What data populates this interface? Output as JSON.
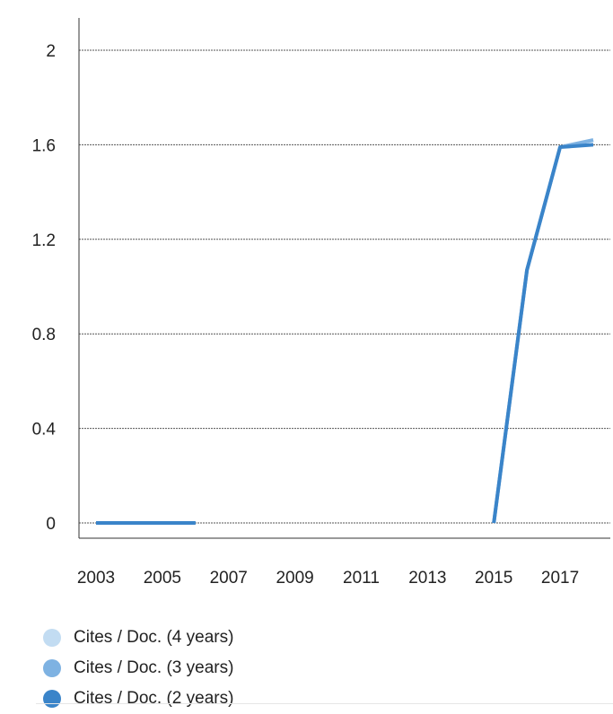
{
  "chart_data": {
    "type": "line",
    "x": [
      2003,
      2004,
      2005,
      2006,
      2007,
      2008,
      2009,
      2010,
      2011,
      2012,
      2013,
      2014,
      2015,
      2016,
      2017,
      2018
    ],
    "x_ticks": [
      "2003",
      "2005",
      "2007",
      "2009",
      "2011",
      "2013",
      "2015",
      "2017"
    ],
    "y_ticks": [
      "0",
      "0.4",
      "0.8",
      "1.2",
      "1.6",
      "2"
    ],
    "ylim": [
      0,
      2
    ],
    "grid": true,
    "legend_position": "bottom",
    "series": [
      {
        "name": "Cites / Doc. (4 years)",
        "color": "#c2dcf2",
        "values": [
          0,
          0,
          0,
          0,
          null,
          null,
          null,
          null,
          null,
          null,
          null,
          null,
          0,
          1.07,
          1.59,
          1.62
        ]
      },
      {
        "name": "Cites / Doc. (3 years)",
        "color": "#7eb2e2",
        "values": [
          0,
          0,
          0,
          0,
          null,
          null,
          null,
          null,
          null,
          null,
          null,
          null,
          0,
          1.07,
          1.59,
          1.62
        ]
      },
      {
        "name": "Cites / Doc. (2 years)",
        "color": "#3a84c9",
        "values": [
          0,
          0,
          0,
          0,
          null,
          null,
          null,
          null,
          null,
          null,
          null,
          null,
          0,
          1.07,
          1.59,
          1.6
        ]
      }
    ]
  }
}
